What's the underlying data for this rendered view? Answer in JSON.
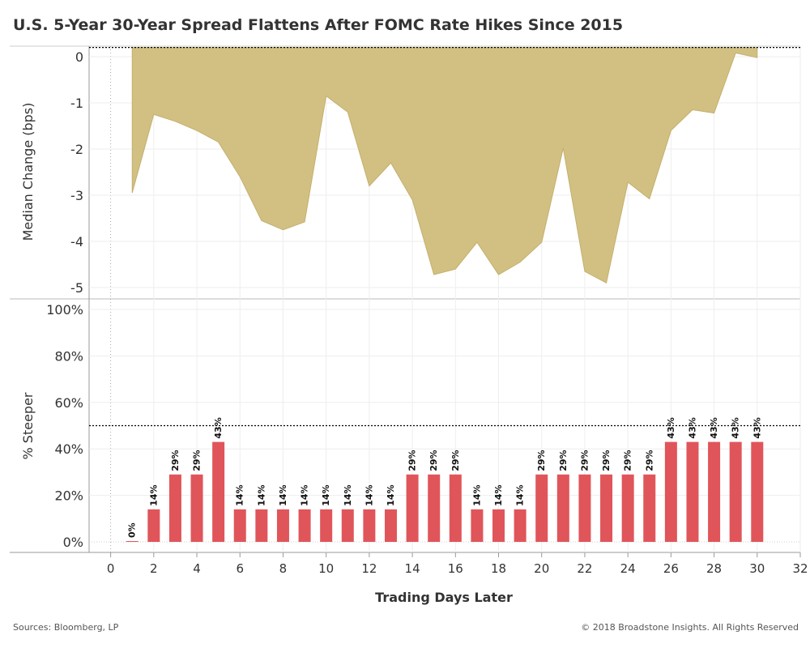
{
  "title": "U.S. 5-Year 30-Year Spread Flattens After FOMC Rate Hikes Since 2015",
  "footer": {
    "source": "Sources: Bloomberg, LP",
    "copyright": "© 2018 Broadstone Insights. All Rights Reserved"
  },
  "colors": {
    "area_fill": "#D2C083",
    "area_stroke": "#C4B06C",
    "bar": "#E0555A"
  },
  "chart_data": [
    {
      "type": "area",
      "ylabel": "Median Change (bps)",
      "ylim": [
        -5.1,
        0.2
      ],
      "yticks": [
        0,
        -1,
        -2,
        -3,
        -4,
        -5
      ],
      "ytick_labels": [
        "0",
        "-1",
        "-2",
        "-3",
        "-4",
        "-5"
      ],
      "reference_line": 0.2,
      "grid": true,
      "x": [
        1,
        2,
        3,
        4,
        5,
        6,
        7,
        8,
        9,
        10,
        11,
        12,
        13,
        14,
        15,
        16,
        17,
        18,
        19,
        20,
        21,
        22,
        23,
        24,
        25,
        26,
        27,
        28,
        29,
        30
      ],
      "values": [
        -2.95,
        -1.25,
        -1.4,
        -1.6,
        -1.85,
        -2.6,
        -3.55,
        -3.75,
        -3.58,
        -0.85,
        -1.2,
        -2.8,
        -2.3,
        -3.1,
        -4.72,
        -4.6,
        -4.02,
        -4.72,
        -4.45,
        -4.02,
        -1.98,
        -4.65,
        -4.9,
        -2.72,
        -3.08,
        -1.6,
        -1.15,
        -1.22,
        0.08,
        -0.02
      ]
    },
    {
      "type": "bar",
      "ylabel": "% Steeper",
      "xlabel": "Trading Days Later",
      "ylim": [
        0,
        100
      ],
      "yticks": [
        0,
        20,
        40,
        60,
        80,
        100
      ],
      "ytick_labels": [
        "0%",
        "20%",
        "40%",
        "60%",
        "80%",
        "100%"
      ],
      "reference_line": 50,
      "grid": true,
      "xlim": [
        -1,
        32
      ],
      "xticks": [
        0,
        2,
        4,
        6,
        8,
        10,
        12,
        14,
        16,
        18,
        20,
        22,
        24,
        26,
        28,
        30,
        32
      ],
      "xtick_labels": [
        "0",
        "2",
        "4",
        "6",
        "8",
        "10",
        "12",
        "14",
        "16",
        "18",
        "20",
        "22",
        "24",
        "26",
        "28",
        "30",
        "32"
      ],
      "x": [
        1,
        2,
        3,
        4,
        5,
        6,
        7,
        8,
        9,
        10,
        11,
        12,
        13,
        14,
        15,
        16,
        17,
        18,
        19,
        20,
        21,
        22,
        23,
        24,
        25,
        26,
        27,
        28,
        29,
        30
      ],
      "values": [
        0,
        14,
        29,
        29,
        43,
        14,
        14,
        14,
        14,
        14,
        14,
        14,
        14,
        29,
        29,
        29,
        14,
        14,
        14,
        29,
        29,
        29,
        29,
        29,
        29,
        43,
        43,
        43,
        43,
        43
      ],
      "labels": [
        "0%",
        "14%",
        "29%",
        "29%",
        "43%",
        "14%",
        "14%",
        "14%",
        "14%",
        "14%",
        "14%",
        "14%",
        "14%",
        "29%",
        "29%",
        "29%",
        "14%",
        "14%",
        "14%",
        "29%",
        "29%",
        "29%",
        "29%",
        "29%",
        "29%",
        "43%",
        "43%",
        "43%",
        "43%",
        "43%"
      ]
    }
  ]
}
